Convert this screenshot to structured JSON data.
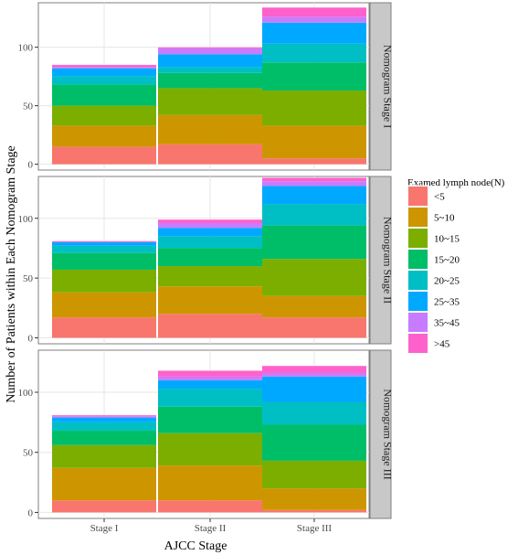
{
  "chart_data": {
    "type": "bar",
    "stacked": true,
    "facet": "rows",
    "ylabel": "Number of Patients within Each Nomogram Stage",
    "xlabel": "AJCC Stage",
    "categories": [
      "Stage I",
      "Stage II",
      "Stage III"
    ],
    "y_ticks": [
      0,
      50,
      100
    ],
    "legend": {
      "title": "Examed lymph node(N)",
      "placement": "right",
      "entries": [
        {
          "label": "<5",
          "color": "#F8766D"
        },
        {
          "label": "5~10",
          "color": "#CD9600"
        },
        {
          "label": "10~15",
          "color": "#7CAE00"
        },
        {
          "label": "15~20",
          "color": "#00BE67"
        },
        {
          "label": "20~25",
          "color": "#00BFC4"
        },
        {
          "label": "25~35",
          "color": "#00A9FF"
        },
        {
          "label": "35~45",
          "color": "#C77CFF"
        },
        {
          "label": ">45",
          "color": "#FF61CC"
        }
      ]
    },
    "panels": [
      {
        "strip": "Nomogram Stage I",
        "ylim": [
          -5,
          138
        ],
        "bars": [
          [
            15,
            18,
            17,
            18,
            7,
            7,
            1,
            2
          ],
          [
            17,
            25,
            23,
            13,
            5,
            11,
            5,
            1
          ],
          [
            5,
            28,
            30,
            24,
            16,
            18,
            5,
            8
          ]
        ]
      },
      {
        "strip": "Nomogram Stage II",
        "ylim": [
          -5,
          135
        ],
        "bars": [
          [
            17,
            21,
            19,
            14,
            6,
            3,
            0,
            1
          ],
          [
            20,
            23,
            17,
            15,
            10,
            7,
            4,
            3
          ],
          [
            17,
            18,
            31,
            28,
            18,
            15,
            4,
            3
          ]
        ]
      },
      {
        "strip": "Nomogram Stage III",
        "ylim": [
          -5,
          135
        ],
        "bars": [
          [
            10,
            27,
            19,
            12,
            7,
            4,
            1,
            1
          ],
          [
            10,
            29,
            27,
            22,
            15,
            7,
            3,
            5
          ],
          [
            2,
            18,
            23,
            30,
            19,
            21,
            3,
            6
          ]
        ]
      }
    ]
  }
}
